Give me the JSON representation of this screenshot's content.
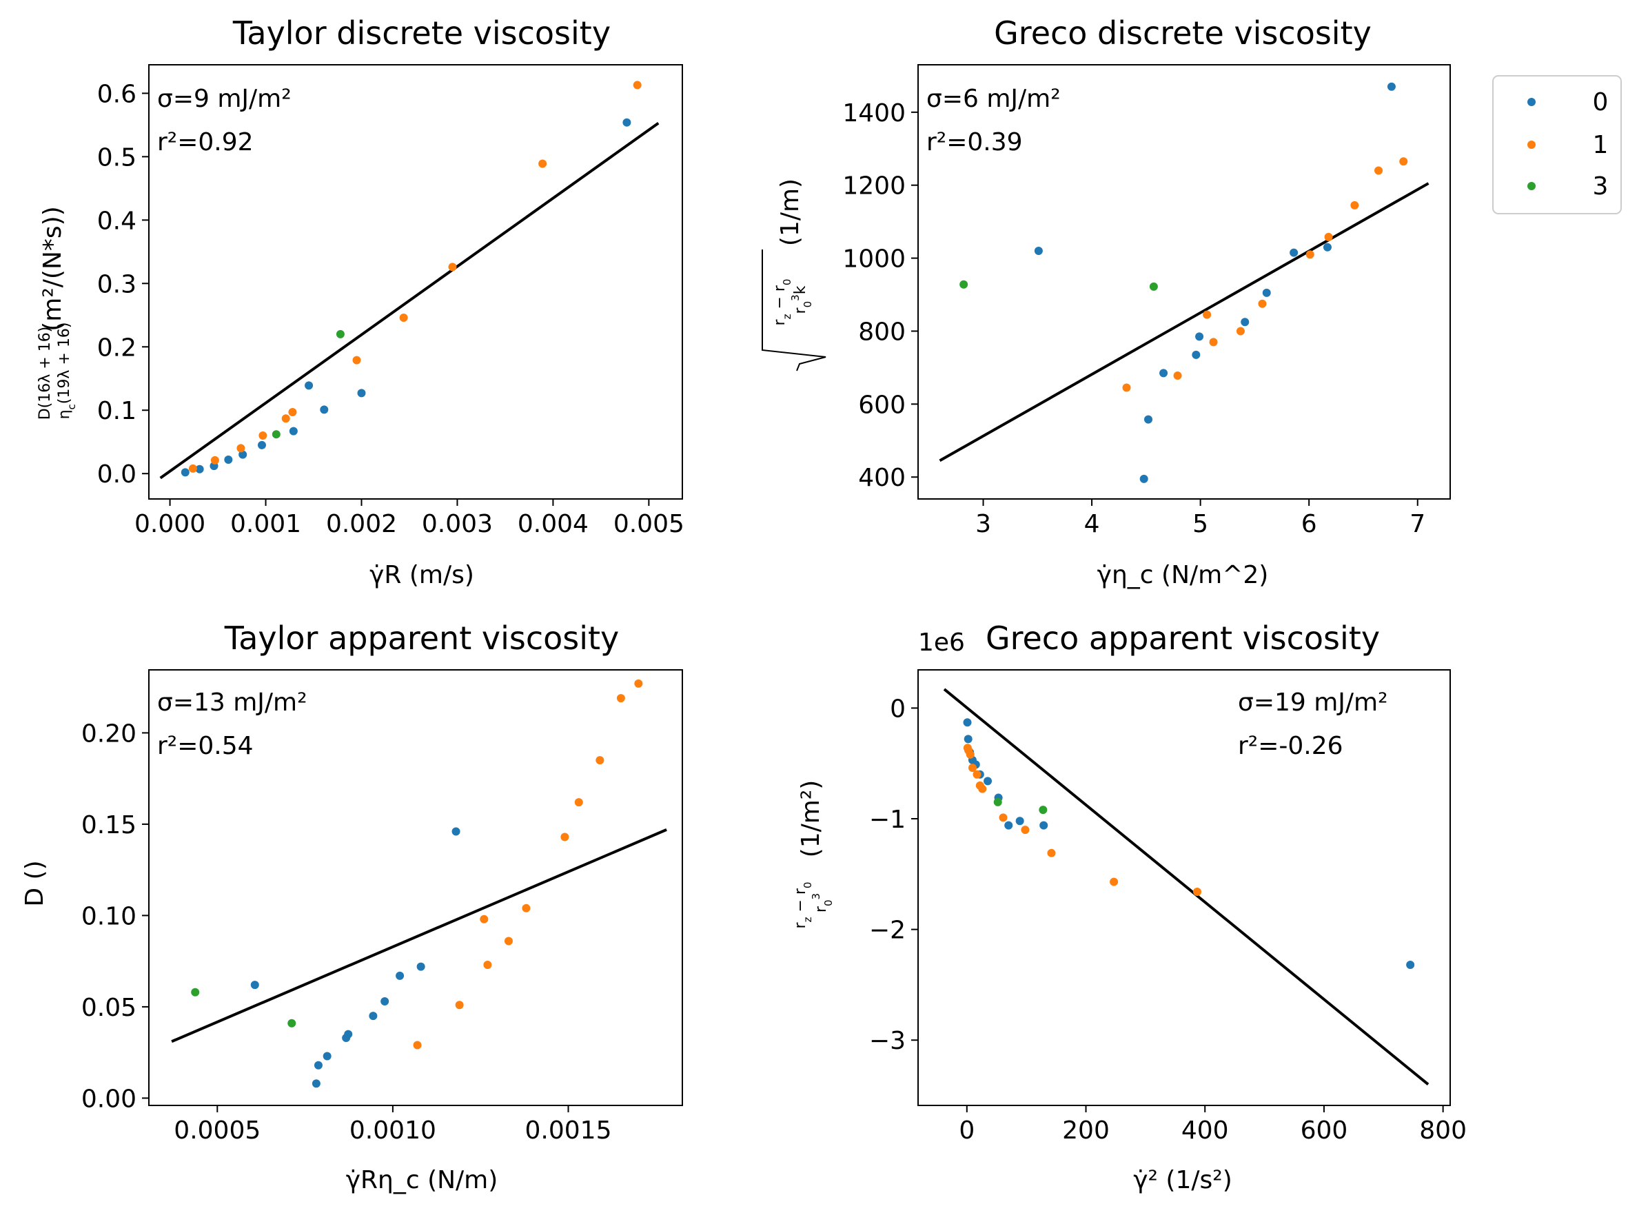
{
  "colors": {
    "series0": "#1f77b4",
    "series1": "#ff7f0e",
    "series3": "#2ca02c",
    "fit": "#000000"
  },
  "legend": {
    "placement": "right of top-right panel",
    "entries": [
      {
        "label": "0",
        "color": "#1f77b4"
      },
      {
        "label": "1",
        "color": "#ff7f0e"
      },
      {
        "label": "3",
        "color": "#2ca02c"
      }
    ]
  },
  "chart_data": [
    {
      "type": "scatter",
      "title": "Taylor discrete viscosity",
      "xlabel": "γ̇R (m/s)",
      "ylabel": "D(16λ+16) / η_c(19λ+16) (m²/(N*s))",
      "annotation_sigma": "σ=9 mJ/m²",
      "annotation_r2": "r²=0.92",
      "xlim": [
        -0.00022,
        0.00535
      ],
      "ylim": [
        -0.04,
        0.645
      ],
      "xticks": [
        0,
        0.001,
        0.002,
        0.003,
        0.004,
        0.005
      ],
      "xtick_labels": [
        "0.000",
        "0.001",
        "0.002",
        "0.003",
        "0.004",
        "0.005"
      ],
      "yticks": [
        0,
        0.1,
        0.2,
        0.3,
        0.4,
        0.5,
        0.6
      ],
      "ytick_labels": [
        "0.0",
        "0.1",
        "0.2",
        "0.3",
        "0.4",
        "0.5",
        "0.6"
      ],
      "fit_line": {
        "x": [
          -0.0001,
          0.0051
        ],
        "y": [
          -0.007,
          0.553
        ]
      },
      "series": [
        {
          "name": "0",
          "x": [
            0.00016,
            0.00031,
            0.00046,
            0.00061,
            0.00076,
            0.00096,
            0.00129,
            0.00145,
            0.00161,
            0.002,
            0.00477
          ],
          "y": [
            0.002,
            0.007,
            0.012,
            0.022,
            0.03,
            0.045,
            0.067,
            0.139,
            0.101,
            0.127,
            0.554
          ]
        },
        {
          "name": "1",
          "x": [
            0.00024,
            0.00047,
            0.00074,
            0.00097,
            0.00121,
            0.00128,
            0.00195,
            0.00244,
            0.00295,
            0.00389,
            0.00488
          ],
          "y": [
            0.008,
            0.021,
            0.04,
            0.06,
            0.087,
            0.097,
            0.179,
            0.246,
            0.326,
            0.489,
            0.613
          ]
        },
        {
          "name": "3",
          "x": [
            0.00111,
            0.00178
          ],
          "y": [
            0.062,
            0.22
          ]
        }
      ]
    },
    {
      "type": "scatter",
      "title": "Greco discrete viscosity",
      "xlabel": "γ̇η_c (N/m^2)",
      "ylabel": "√((r_z − r_0) / (r_0³k)) (1/m)",
      "annotation_sigma": "σ=6 mJ/m²",
      "annotation_r2": "r²=0.39",
      "xlim": [
        2.4,
        7.3
      ],
      "ylim": [
        340,
        1530
      ],
      "xticks": [
        3,
        4,
        5,
        6,
        7
      ],
      "xtick_labels": [
        "3",
        "4",
        "5",
        "6",
        "7"
      ],
      "yticks": [
        400,
        600,
        800,
        1000,
        1200,
        1400
      ],
      "ytick_labels": [
        "400",
        "600",
        "800",
        "1000",
        "1200",
        "1400"
      ],
      "fit_line": {
        "x": [
          2.6,
          7.1
        ],
        "y": [
          445,
          1205
        ]
      },
      "series": [
        {
          "name": "0",
          "x": [
            3.51,
            4.48,
            4.52,
            4.66,
            4.96,
            4.99,
            5.41,
            5.61,
            5.86,
            6.17,
            6.76
          ],
          "y": [
            1020,
            395,
            558,
            685,
            735,
            785,
            825,
            905,
            1015,
            1030,
            1470
          ]
        },
        {
          "name": "1",
          "x": [
            4.32,
            4.79,
            5.06,
            5.12,
            5.37,
            5.57,
            6.01,
            6.18,
            6.42,
            6.64,
            6.87
          ],
          "y": [
            645,
            678,
            845,
            770,
            800,
            875,
            1010,
            1058,
            1145,
            1240,
            1265
          ]
        },
        {
          "name": "3",
          "x": [
            2.82,
            4.57
          ],
          "y": [
            928,
            922
          ]
        }
      ]
    },
    {
      "type": "scatter",
      "title": "Taylor apparent viscosity",
      "xlabel": "γ̇Rη_c (N/m)",
      "ylabel": "D ()",
      "annotation_sigma": "σ=13 mJ/m²",
      "annotation_r2": "r²=0.54",
      "xlim": [
        0.000305,
        0.001825
      ],
      "ylim": [
        -0.004,
        0.2345
      ],
      "xticks": [
        0.0005,
        0.001,
        0.0015
      ],
      "xtick_labels": [
        "0.0005",
        "0.0010",
        "0.0015"
      ],
      "yticks": [
        0,
        0.05,
        0.1,
        0.15,
        0.2
      ],
      "ytick_labels": [
        "0.00",
        "0.05",
        "0.10",
        "0.15",
        "0.20"
      ],
      "fit_line": {
        "x": [
          0.00037,
          0.00178
        ],
        "y": [
          0.031,
          0.147
        ]
      },
      "series": [
        {
          "name": "0",
          "x": [
            0.000607,
            0.000782,
            0.000788,
            0.000813,
            0.000867,
            0.000873,
            0.000944,
            0.000977,
            0.00102,
            0.00108,
            0.00118
          ],
          "y": [
            0.062,
            0.008,
            0.018,
            0.023,
            0.033,
            0.035,
            0.045,
            0.053,
            0.067,
            0.072,
            0.146
          ]
        },
        {
          "name": "1",
          "x": [
            0.00107,
            0.00119,
            0.00126,
            0.00127,
            0.00133,
            0.00138,
            0.00149,
            0.00153,
            0.00159,
            0.00165,
            0.0017
          ],
          "y": [
            0.029,
            0.051,
            0.098,
            0.073,
            0.086,
            0.104,
            0.143,
            0.162,
            0.185,
            0.219,
            0.227
          ]
        },
        {
          "name": "3",
          "x": [
            0.000437,
            0.000712
          ],
          "y": [
            0.058,
            0.041
          ]
        }
      ]
    },
    {
      "type": "scatter",
      "title": "Greco apparent viscosity",
      "xlabel": "γ̇² (1/s²)",
      "ylabel": "(r_z − r_0) / r_0³ (1/m²)",
      "axis_multiplier": "1e6",
      "annotation_sigma": "σ=19 mJ/m²",
      "annotation_r2": "r²=-0.26",
      "xlim": [
        -82,
        812
      ],
      "ylim": [
        -3.59,
        0.345
      ],
      "xticks": [
        0,
        200,
        400,
        600,
        800
      ],
      "xtick_labels": [
        "0",
        "200",
        "400",
        "600",
        "800"
      ],
      "yticks": [
        0,
        -1,
        -2,
        -3
      ],
      "ytick_labels": [
        "0",
        "−1",
        "−2",
        "−3"
      ],
      "fit_line": {
        "x": [
          -38,
          775
        ],
        "y": [
          0.17,
          -3.4
        ]
      },
      "series": [
        {
          "name": "0",
          "x": [
            0.8,
            2.2,
            5,
            9.4,
            15,
            22,
            35,
            53,
            70,
            89,
            129,
            745
          ],
          "y": [
            -0.13,
            -0.28,
            -0.4,
            -0.47,
            -0.51,
            -0.6,
            -0.66,
            -0.81,
            -1.06,
            -1.02,
            -1.06,
            -2.32
          ]
        },
        {
          "name": "1",
          "x": [
            1.2,
            2.5,
            5.7,
            9.5,
            17,
            22,
            26,
            61,
            98,
            142,
            247,
            387
          ],
          "y": [
            -0.36,
            -0.38,
            -0.42,
            -0.54,
            -0.6,
            -0.7,
            -0.73,
            -0.99,
            -1.1,
            -1.31,
            -1.57,
            -1.66
          ]
        },
        {
          "name": "3",
          "x": [
            52,
            128
          ],
          "y": [
            -0.85,
            -0.92
          ]
        }
      ]
    }
  ]
}
